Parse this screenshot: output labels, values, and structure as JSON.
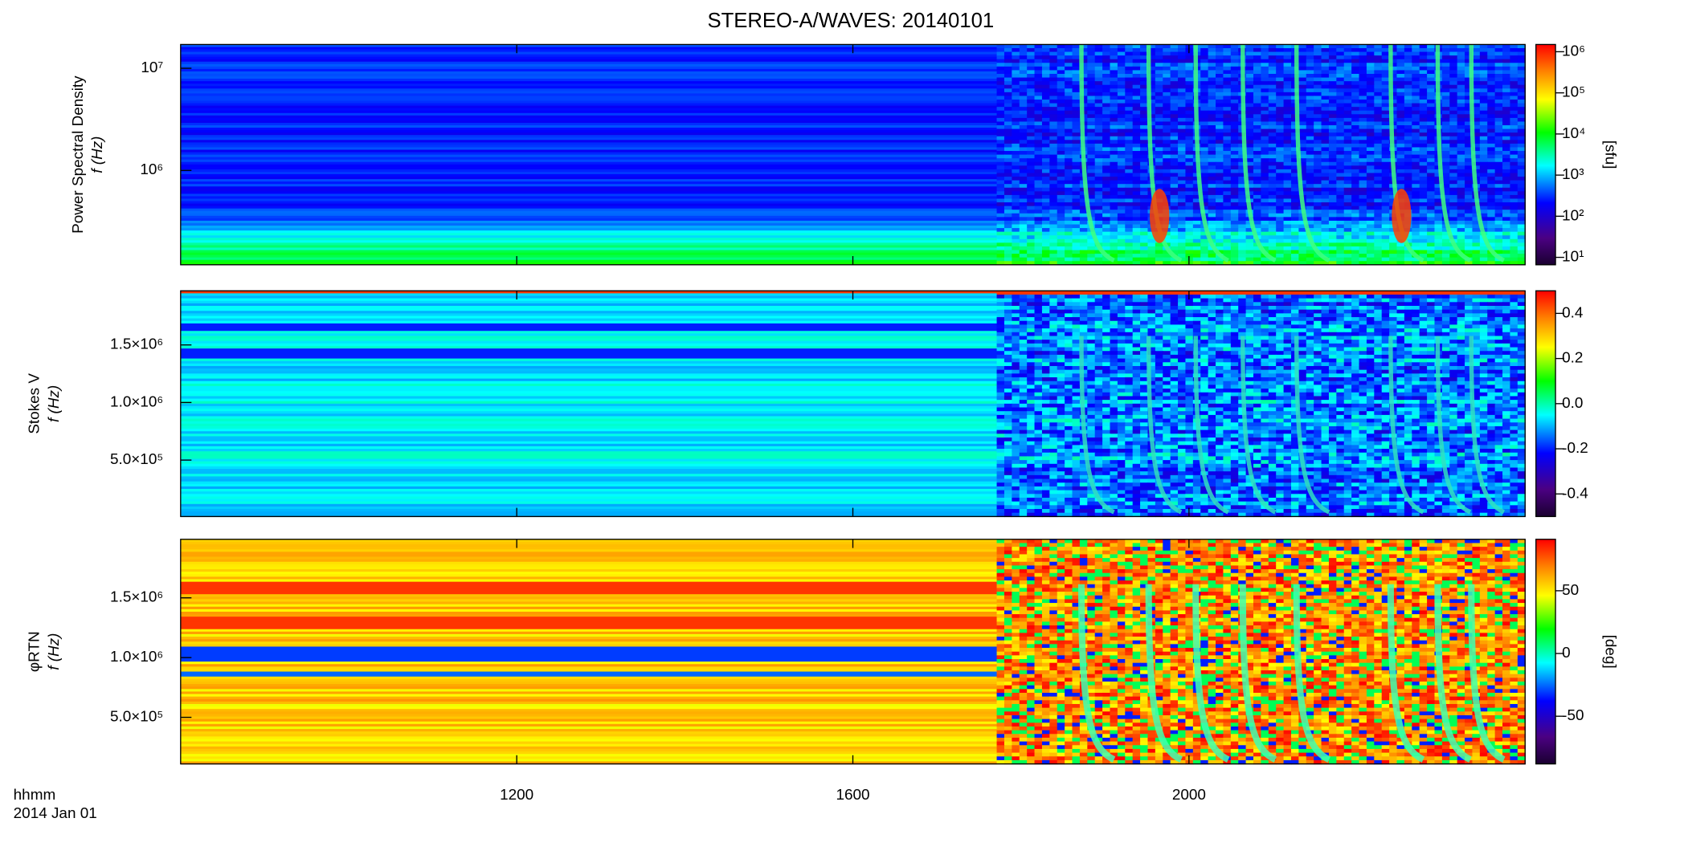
{
  "chart_data": [
    {
      "type": "heatmap",
      "title": "STEREO-A/WAVES: 20140101",
      "ylabel": [
        "Power Spectral Density",
        "f (Hz)"
      ],
      "ylog": true,
      "ylim": [
        119000,
        17100000
      ],
      "yticks": [
        {
          "value": 1000000,
          "label": "10⁶"
        },
        {
          "value": 10000000,
          "label": "10⁷"
        }
      ],
      "xlim": [
        800,
        2400
      ],
      "xticks": [
        1200,
        1600,
        2000
      ],
      "colormap": "rainbow",
      "zlog": true,
      "zlim": [
        6.6,
        1500000
      ],
      "zticks": [
        {
          "value": 10,
          "label": "10¹"
        },
        {
          "value": 100,
          "label": "10²"
        },
        {
          "value": 1000,
          "label": "10³"
        },
        {
          "value": 10000,
          "label": "10⁴"
        },
        {
          "value": 100000,
          "label": "10⁵"
        },
        {
          "value": 1000000,
          "label": "10⁶"
        }
      ],
      "zlabel": "[sfu]"
    },
    {
      "type": "heatmap",
      "ylabel": [
        "Stokes V",
        "f (Hz)"
      ],
      "ylog": false,
      "ylim": [
        10000,
        1970000
      ],
      "yticks": [
        {
          "value": 500000,
          "label": "5.0×10⁵"
        },
        {
          "value": 1000000,
          "label": "1.0×10⁶"
        },
        {
          "value": 1500000,
          "label": "1.5×10⁶"
        }
      ],
      "xlim": [
        800,
        2400
      ],
      "xticks": [
        1200,
        1600,
        2000
      ],
      "colormap": "rainbow",
      "zlog": false,
      "zlim": [
        -0.5,
        0.5
      ],
      "zticks": [
        {
          "value": -0.4,
          "label": "-0.4"
        },
        {
          "value": -0.2,
          "label": "-0.2"
        },
        {
          "value": 0,
          "label": "0.0"
        },
        {
          "value": 0.2,
          "label": "0.2"
        },
        {
          "value": 0.4,
          "label": "0.4"
        }
      ]
    },
    {
      "type": "heatmap",
      "ylabel": [
        "φRTN",
        "f (Hz)"
      ],
      "ylog": false,
      "ylim": [
        110000,
        1990000
      ],
      "yticks": [
        {
          "value": 500000,
          "label": "5.0×10⁵"
        },
        {
          "value": 1000000,
          "label": "1.0×10⁶"
        },
        {
          "value": 1500000,
          "label": "1.5×10⁶"
        }
      ],
      "xlim": [
        800,
        2400
      ],
      "xticks": [
        1200,
        1600,
        2000
      ],
      "xlabel": "hhmm",
      "date": "2014 Jan 01",
      "colormap": "rainbow",
      "zlog": false,
      "zlim": [
        -88,
        91
      ],
      "zticks": [
        -50,
        0,
        50
      ],
      "zlabel": "[deg]"
    }
  ]
}
